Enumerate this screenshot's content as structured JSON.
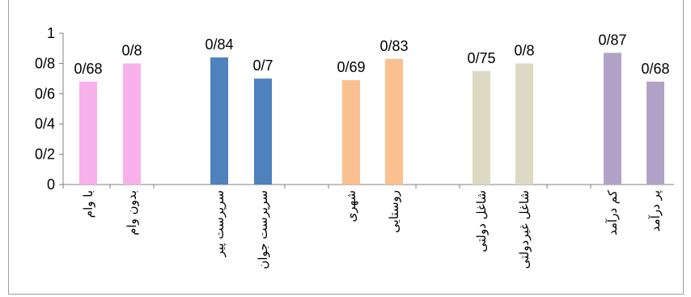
{
  "chart_data": {
    "type": "bar",
    "ylim": [
      0,
      1
    ],
    "yticks": [
      "0",
      "0/2",
      "0/4",
      "0/6",
      "0/8",
      "1"
    ],
    "grid": false,
    "categories": [
      "با وام",
      "بدون وام",
      "سرپرست پیر",
      "سرپرست جوان",
      "شهری",
      "روستایی",
      "شاغل دولتی",
      "شاغل غیردولتی",
      "کم درآمد",
      "پر درآمد"
    ],
    "values": [
      0.68,
      0.8,
      0.84,
      0.7,
      0.69,
      0.83,
      0.75,
      0.8,
      0.87,
      0.68
    ],
    "value_labels": [
      "0/68",
      "0/8",
      "0/84",
      "0/7",
      "0/69",
      "0/83",
      "0/75",
      "0/8",
      "0/87",
      "0/68"
    ],
    "colors": [
      "#f9b1ec",
      "#f9b1ec",
      "#4f81bd",
      "#4f81bd",
      "#fac090",
      "#fac090",
      "#ddd9c3",
      "#ddd9c3",
      "#b3a2c7",
      "#b3a2c7"
    ]
  }
}
